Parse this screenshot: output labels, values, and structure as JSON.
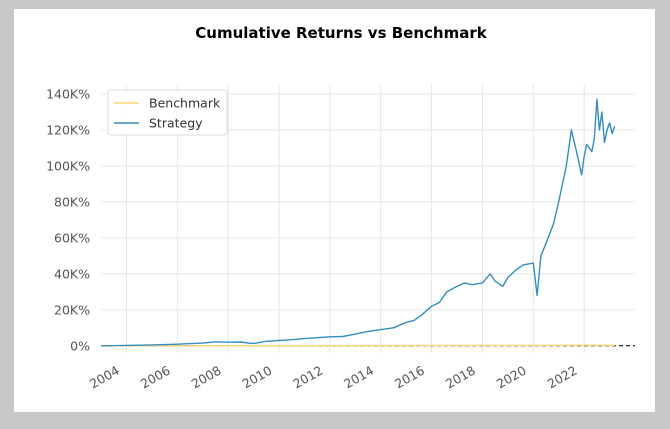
{
  "chart_data": {
    "type": "line",
    "title": "Cumulative Returns vs Benchmark",
    "xlabel": "",
    "ylabel": "",
    "x_ticks": [
      "2004",
      "2006",
      "2008",
      "2010",
      "2012",
      "2014",
      "2016",
      "2018",
      "2020",
      "2022"
    ],
    "y_ticks": [
      "0%",
      "20K%",
      "40K%",
      "60K%",
      "80K%",
      "100K%",
      "120K%",
      "140K%"
    ],
    "xlim": [
      2003.0,
      2024.0
    ],
    "ylim": [
      -4000,
      145000
    ],
    "grid": true,
    "legend_position": "top-left",
    "reference_line": 0,
    "series": [
      {
        "name": "Benchmark",
        "color": "#fdd577",
        "x": [
          2003.0,
          2006.0,
          2008.0,
          2010.0,
          2014.0,
          2018.0,
          2020.0,
          2022.0,
          2023.2
        ],
        "values": [
          0,
          30,
          20,
          40,
          120,
          200,
          220,
          350,
          300
        ]
      },
      {
        "name": "Strategy",
        "color": "#348dc1",
        "x": [
          2003.0,
          2004.0,
          2005.0,
          2006.0,
          2007.0,
          2007.5,
          2008.0,
          2008.5,
          2008.8,
          2009.0,
          2009.5,
          2010.0,
          2010.5,
          2011.0,
          2011.5,
          2012.0,
          2012.5,
          2013.0,
          2013.5,
          2014.0,
          2014.5,
          2015.0,
          2015.3,
          2015.6,
          2016.0,
          2016.3,
          2016.6,
          2017.0,
          2017.3,
          2017.6,
          2018.0,
          2018.3,
          2018.5,
          2018.8,
          2019.0,
          2019.3,
          2019.6,
          2020.0,
          2020.15,
          2020.3,
          2020.5,
          2020.8,
          2021.0,
          2021.3,
          2021.5,
          2021.7,
          2021.9,
          2022.0,
          2022.1,
          2022.3,
          2022.4,
          2022.5,
          2022.6,
          2022.7,
          2022.8,
          2022.9,
          2023.0,
          2023.1,
          2023.2
        ],
        "values": [
          0,
          200,
          500,
          900,
          1500,
          2200,
          2000,
          2100,
          1500,
          1300,
          2500,
          3000,
          3400,
          4000,
          4500,
          5000,
          5200,
          6500,
          8000,
          9000,
          10000,
          13000,
          14000,
          17000,
          22000,
          24000,
          30000,
          33000,
          35000,
          34000,
          35000,
          40000,
          36000,
          33000,
          38000,
          42000,
          45000,
          46000,
          28000,
          50000,
          57000,
          68000,
          80000,
          100000,
          120000,
          108000,
          95000,
          105000,
          112000,
          108000,
          115000,
          137000,
          120000,
          130000,
          113000,
          120000,
          124000,
          118000,
          122000
        ]
      }
    ]
  }
}
